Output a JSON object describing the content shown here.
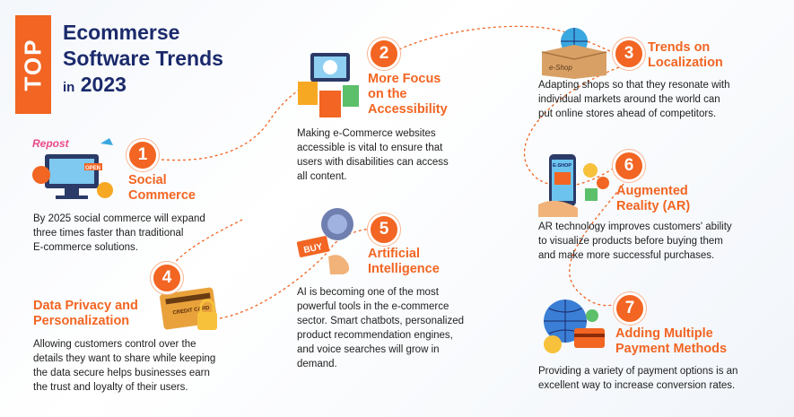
{
  "tag": "TOP",
  "title": {
    "line1": "Ecommerse",
    "line2": "Software Trends",
    "prefix": "in",
    "year": "2023"
  },
  "trends": [
    {
      "number": "1",
      "heading_l1": "Social",
      "heading_l2": "Commerce",
      "desc": [
        "By 2025 social commerce will expand",
        "three times faster than traditional",
        "E-commerce solutions."
      ],
      "icon": "social-commerce-illustration",
      "sticker_repost": "Repost",
      "sticker_open": "OPEN"
    },
    {
      "number": "2",
      "heading_l1": "More Focus",
      "heading_l2": "on the",
      "heading_l3": "Accessibility",
      "desc": [
        "Making e-Commerce websites",
        "accessible is vital to ensure that",
        "users with disabilities can access",
        "all content."
      ],
      "icon": "accessibility-illustration"
    },
    {
      "number": "3",
      "heading_l1": "Trends on",
      "heading_l2": "Localization",
      "desc": [
        "Adapting shops so that they resonate with",
        "individual markets around the world can",
        "put online stores ahead of competitors."
      ],
      "icon": "globe-box-icon",
      "box_label": "e-Shop"
    },
    {
      "number": "4",
      "heading_l1": "Data Privacy and",
      "heading_l2": "Personalization",
      "desc": [
        "Allowing customers control over the",
        "details they want to share while  keeping",
        "the data secure helps businesses earn",
        "the trust and loyalty of their users."
      ],
      "icon": "credit-card-lock-illustration",
      "card_label": "CREDIT CARD"
    },
    {
      "number": "5",
      "heading_l1": "Artificial",
      "heading_l2": "Intelligence",
      "desc": [
        "AI is becoming one of the most",
        "powerful tools in the e-commerce",
        "sector. Smart chatbots, personalized",
        "product recommendation engines,",
        "and voice searches will grow in",
        "demand."
      ],
      "icon": "ai-brain-illustration",
      "sign_label": "BUY"
    },
    {
      "number": "6",
      "heading_l1": "Augmented",
      "heading_l2": "Reality (AR)",
      "desc": [
        "AR technology improves customers' ability",
        "to visualize products before buying them",
        "and make more successful purchases."
      ],
      "icon": "ar-phone-illustration",
      "phone_label": "E-SHOP"
    },
    {
      "number": "7",
      "heading_l1": "Adding Multiple",
      "heading_l2": "Payment Methods",
      "desc": [
        "Providing a variety of payment options is an",
        "excellent way to increase conversion rates."
      ],
      "icon": "globe-payment-illustration"
    }
  ],
  "colors": {
    "accent": "#f26522",
    "title": "#1b2a6b",
    "text": "#1e1e1e"
  }
}
